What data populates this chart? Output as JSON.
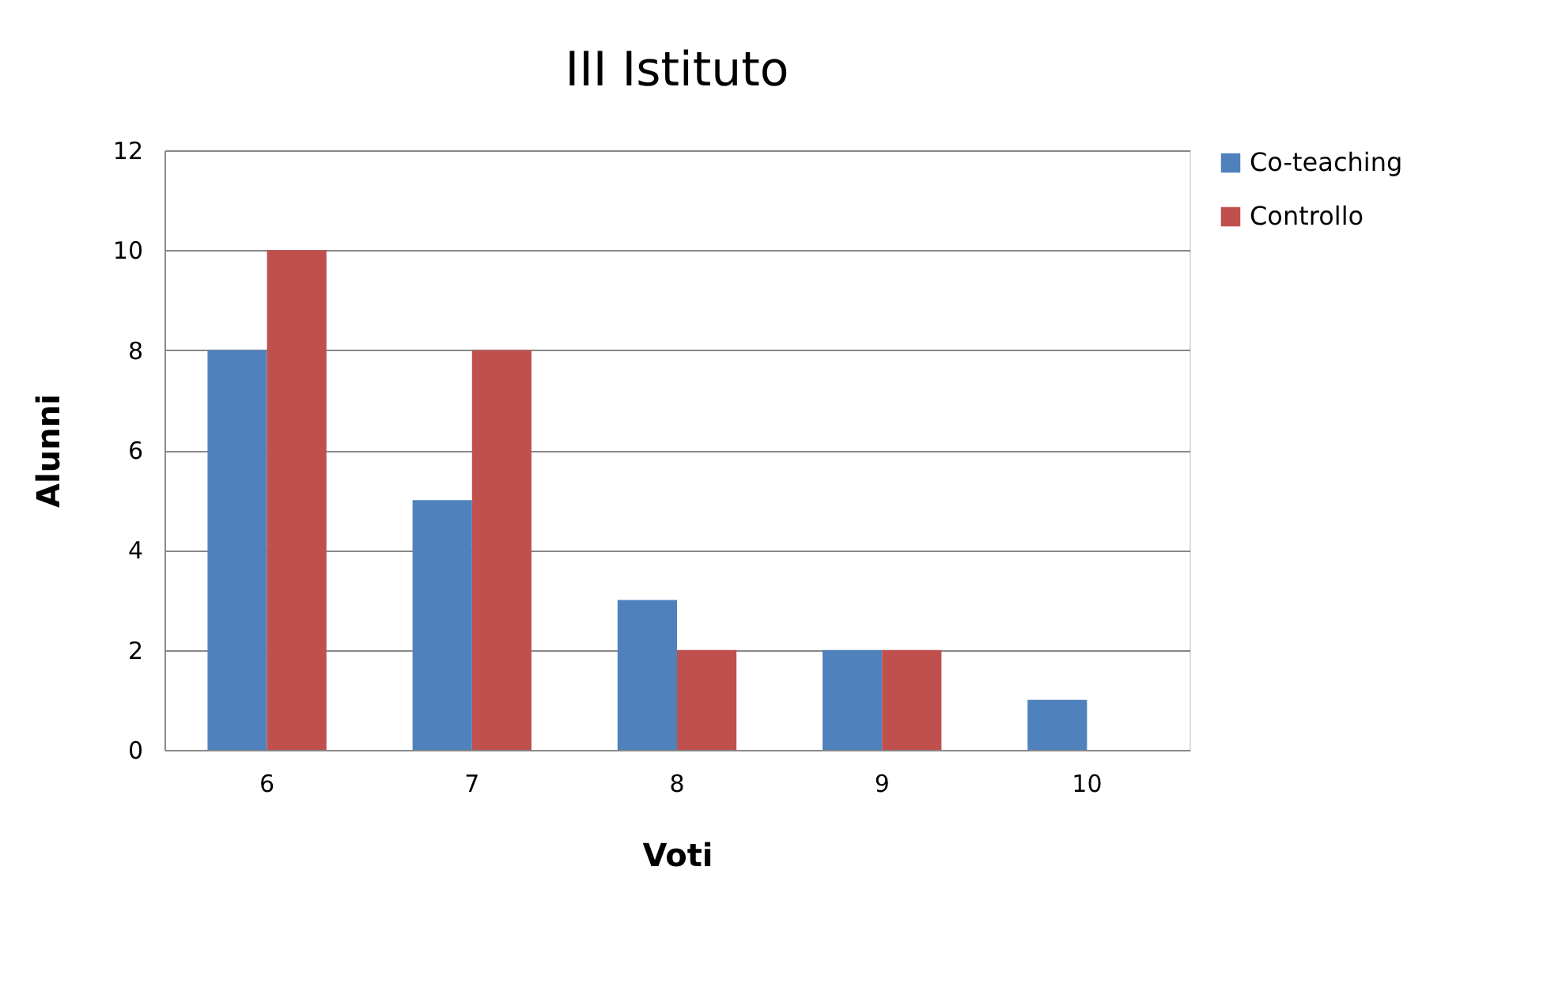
{
  "chart_data": {
    "type": "bar",
    "title": "III Istituto",
    "xlabel": "Voti",
    "ylabel": "Alunni",
    "categories": [
      "6",
      "7",
      "8",
      "9",
      "10"
    ],
    "series": [
      {
        "name": "Co-teaching",
        "color": "#4f81bd",
        "values": [
          8,
          5,
          3,
          2,
          1
        ]
      },
      {
        "name": "Controllo",
        "color": "#c0504d",
        "values": [
          10,
          8,
          2,
          2,
          0
        ]
      }
    ],
    "ylim": [
      0,
      12
    ],
    "yticks": [
      0,
      2,
      4,
      6,
      8,
      10,
      12
    ],
    "grid": "y",
    "legend": "right"
  }
}
